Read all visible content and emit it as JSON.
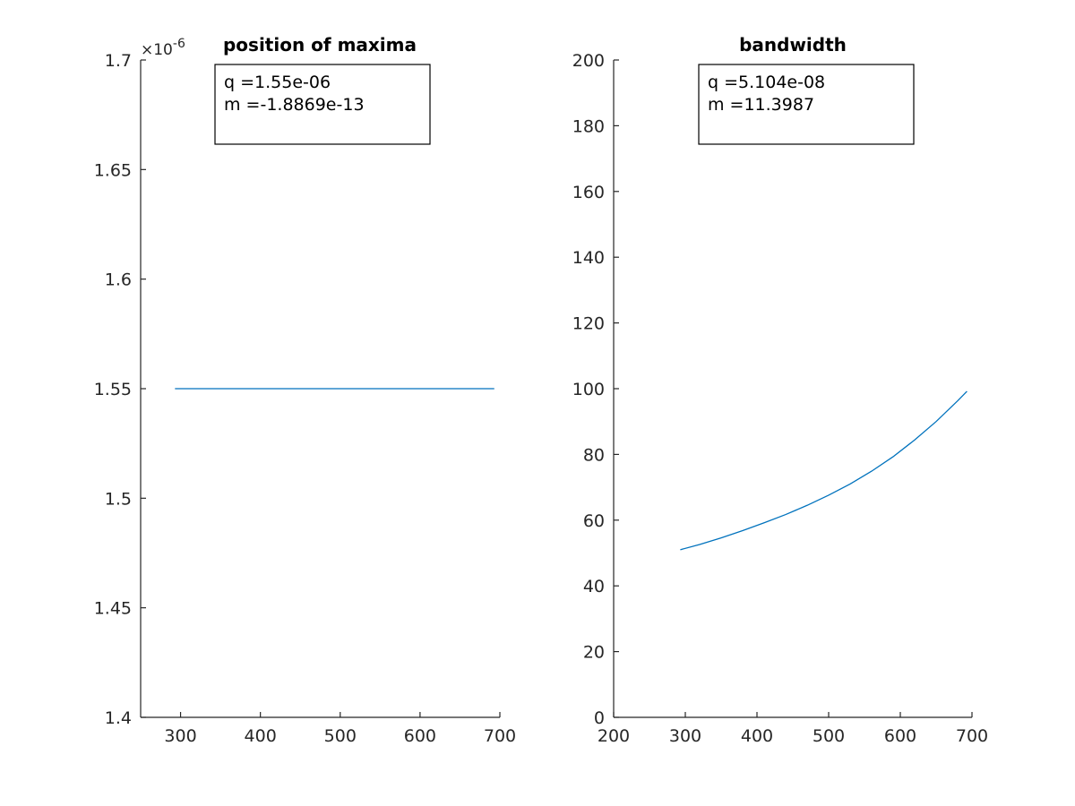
{
  "chart_data": [
    {
      "type": "line",
      "title": "position of maxima",
      "xlabel": "",
      "ylabel": "",
      "xlim": [
        250,
        700
      ],
      "ylim": [
        1.4e-06,
        1.7e-06
      ],
      "x_ticks": [
        300,
        400,
        500,
        600,
        700
      ],
      "x_tick_labels": [
        "300",
        "400",
        "500",
        "600",
        "700"
      ],
      "y_ticks": [
        1.4e-06,
        1.45e-06,
        1.5e-06,
        1.55e-06,
        1.6e-06,
        1.65e-06,
        1.7e-06
      ],
      "y_tick_labels": [
        "1.4",
        "1.45",
        "1.5",
        "1.55",
        "1.6",
        "1.65",
        "1.7"
      ],
      "y_exponent_label": "×10",
      "y_exponent_power": "-6",
      "series": [
        {
          "x": [
            293,
            350,
            400,
            450,
            500,
            550,
            600,
            650,
            693
          ],
          "y": [
            1.55e-06,
            1.55e-06,
            1.55e-06,
            1.55e-06,
            1.55e-06,
            1.55e-06,
            1.55e-06,
            1.55e-06,
            1.55e-06
          ],
          "color": "#0072BD"
        }
      ],
      "annotation": [
        "q =1.55e-06",
        "m =-1.8869e-13"
      ],
      "grid": false
    },
    {
      "type": "line",
      "title": "bandwidth",
      "xlabel": "",
      "ylabel": "",
      "xlim": [
        200,
        700
      ],
      "ylim": [
        0,
        200
      ],
      "x_ticks": [
        200,
        300,
        400,
        500,
        600,
        700
      ],
      "x_tick_labels": [
        "200",
        "300",
        "400",
        "500",
        "600",
        "700"
      ],
      "y_ticks": [
        0,
        20,
        40,
        60,
        80,
        100,
        120,
        140,
        160,
        180,
        200
      ],
      "y_tick_labels": [
        "0",
        "20",
        "40",
        "60",
        "80",
        "100",
        "120",
        "140",
        "160",
        "180",
        "200"
      ],
      "series": [
        {
          "x": [
            293,
            320,
            350,
            380,
            410,
            440,
            470,
            500,
            530,
            560,
            590,
            620,
            650,
            680,
            693
          ],
          "y": [
            51,
            52.6,
            54.6,
            56.8,
            59.2,
            61.7,
            64.5,
            67.6,
            71.0,
            74.9,
            79.3,
            84.4,
            90.0,
            96.3,
            99.2
          ],
          "color": "#0072BD"
        }
      ],
      "annotation": [
        "q =5.104e-08",
        "m =11.3987"
      ],
      "grid": false
    }
  ]
}
